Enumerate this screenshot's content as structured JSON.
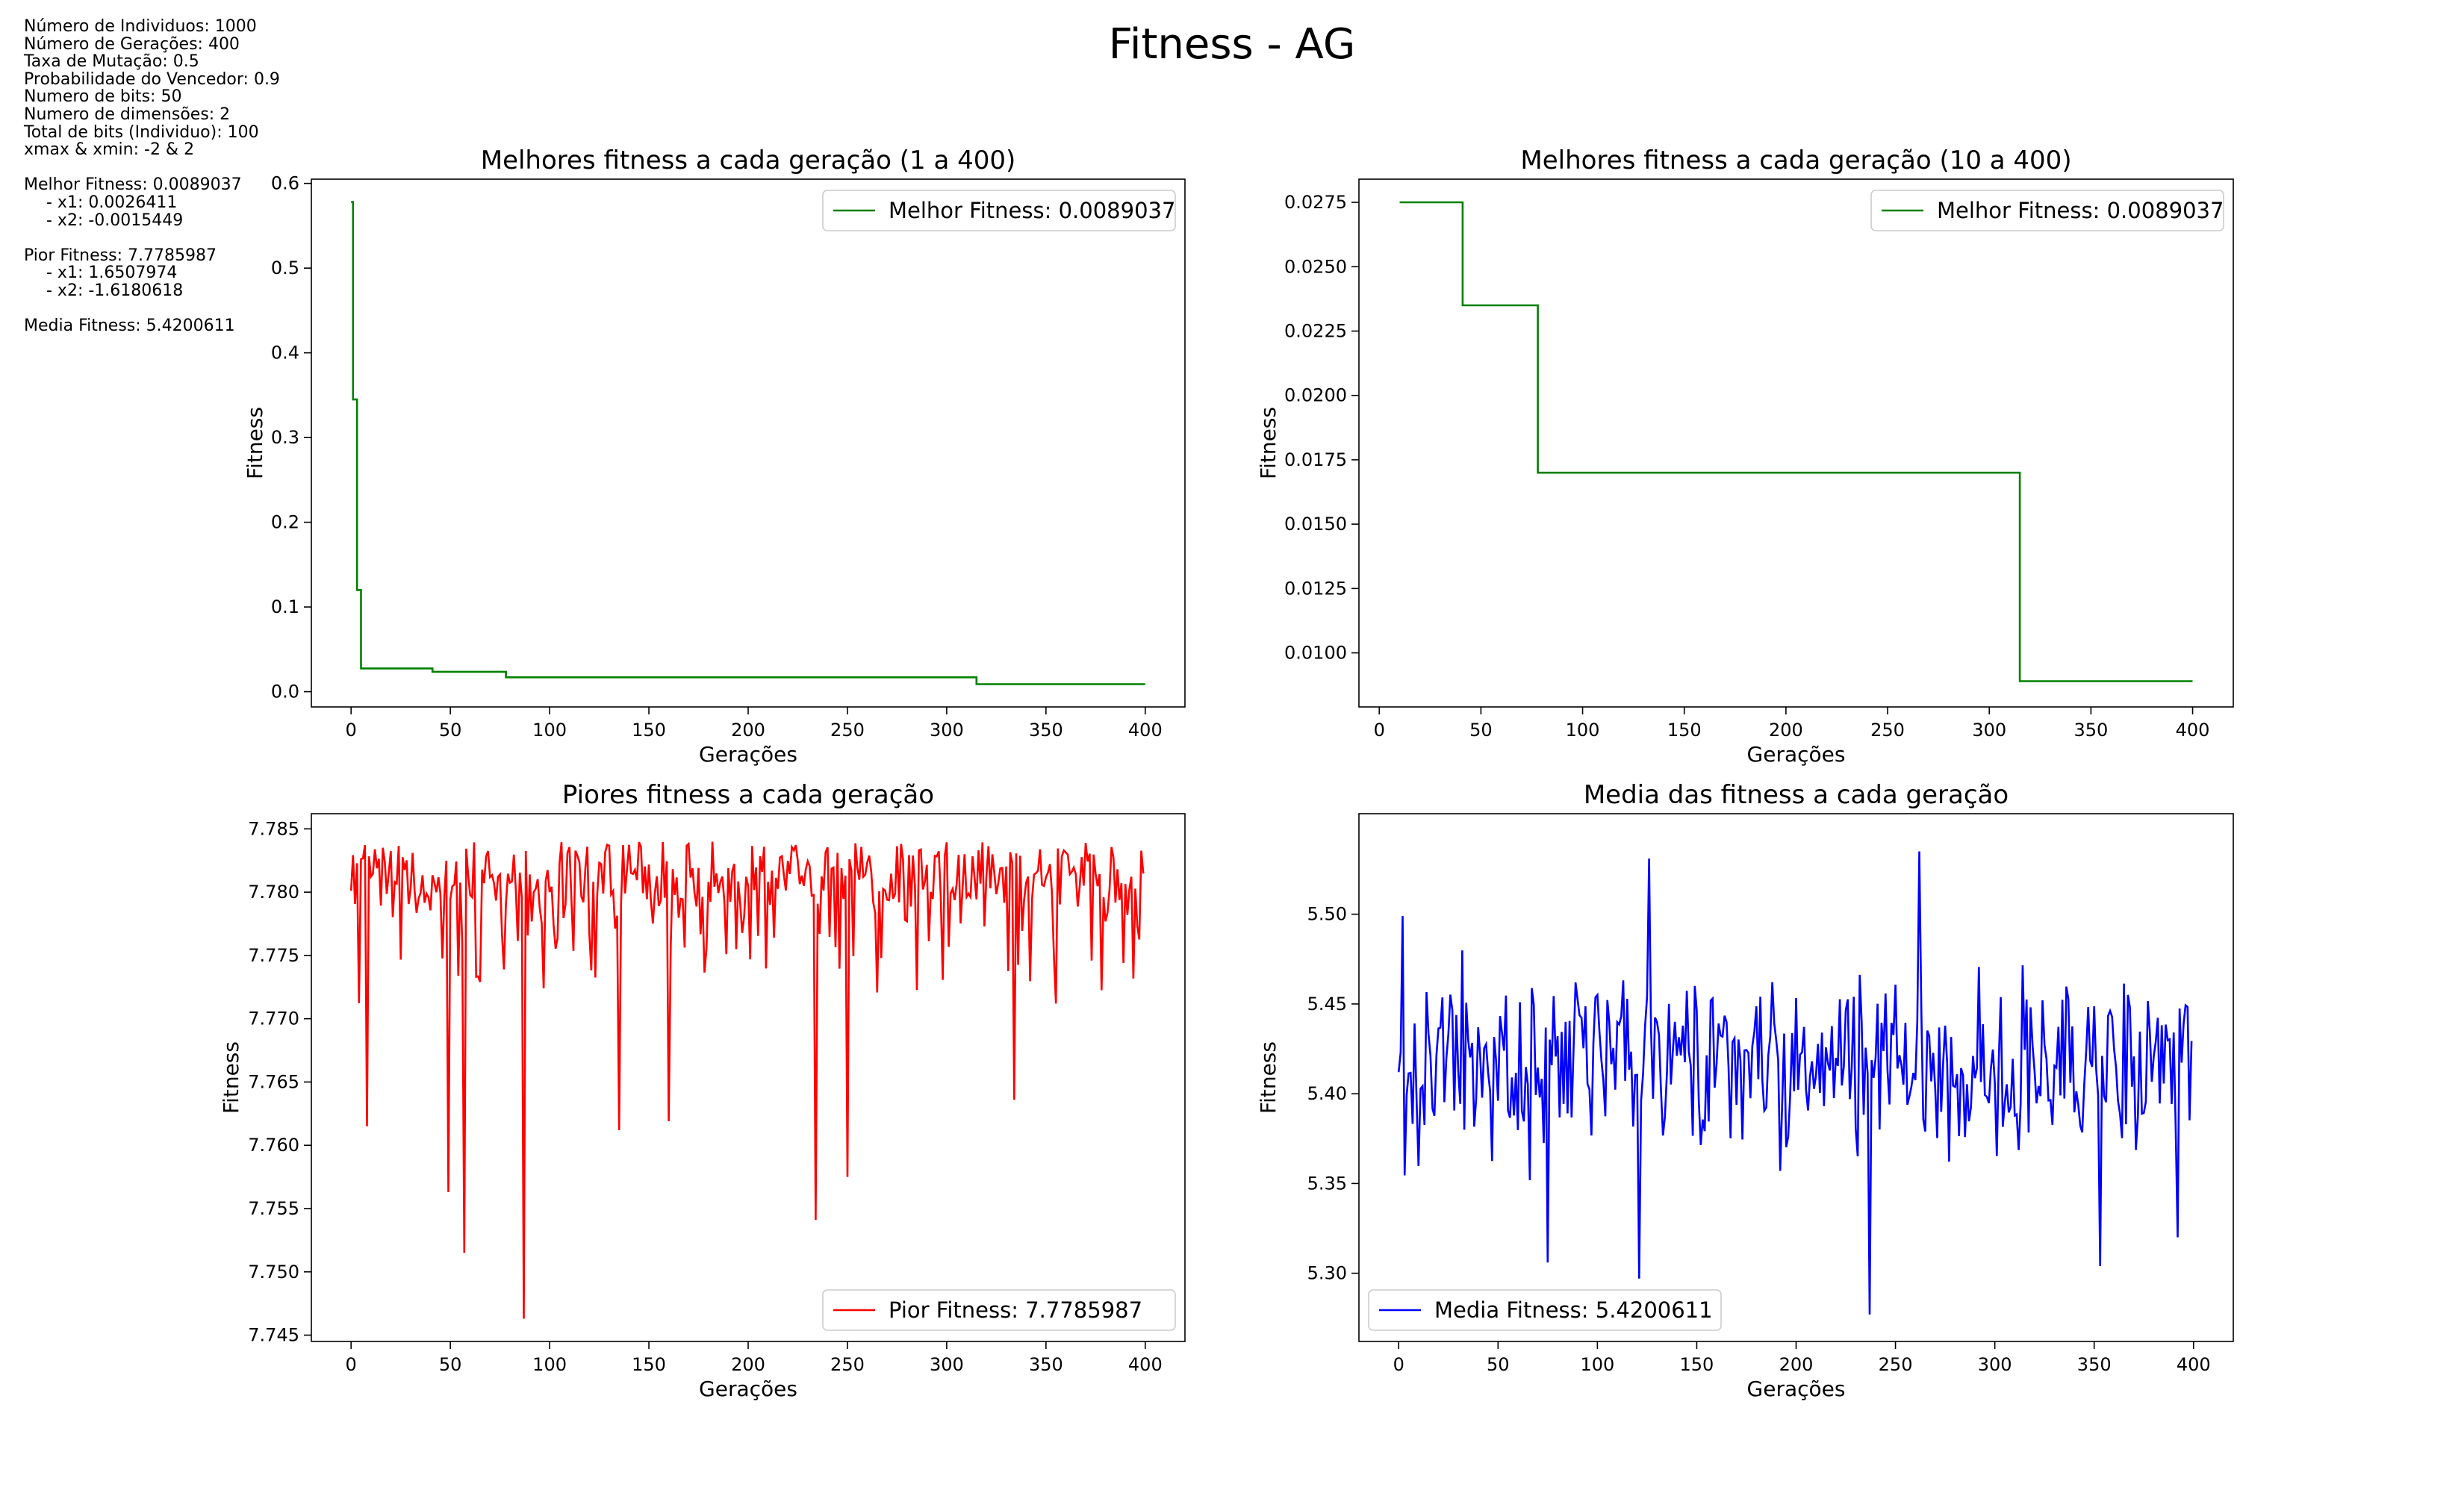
{
  "figure": {
    "title": "Fitness - AG",
    "info": [
      "Número de Individuos: 1000",
      "Número de Gerações: 400",
      "Taxa de Mutação: 0.5",
      "Probabilidade do Vencedor: 0.9",
      "Numero de bits: 50",
      "Numero de dimensões: 2",
      "Total de bits (Individuo): 100",
      "xmax & xmin: -2 & 2",
      "",
      "Melhor Fitness: 0.0089037",
      "  - x1: 0.0026411",
      "  - x2: -0.0015449",
      "",
      "Pior Fitness: 7.7785987",
      "  - x1: 1.6507974",
      "  - x2: -1.6180618",
      "",
      "Media Fitness: 5.4200611"
    ]
  },
  "chart_data": [
    {
      "type": "line",
      "title": "Melhores fitness a cada geração (1 a 400)",
      "xlabel": "Gerações",
      "ylabel": "Fitness",
      "xlim": [
        -20,
        420
      ],
      "ylim": [
        -0.018,
        0.605
      ],
      "xticks": [
        0,
        50,
        100,
        150,
        200,
        250,
        300,
        350,
        400
      ],
      "yticks": [
        0.0,
        0.1,
        0.2,
        0.3,
        0.4,
        0.5,
        0.6
      ],
      "ytick_labels": [
        "0.0",
        "0.1",
        "0.2",
        "0.3",
        "0.4",
        "0.5",
        "0.6"
      ],
      "grid": false,
      "legend": "upper right",
      "step": true,
      "series": [
        {
          "name": "Melhor Fitness: 0.0089037",
          "color": "#008000",
          "points": [
            [
              0,
              0.578
            ],
            [
              1,
              0.345
            ],
            [
              2,
              0.345
            ],
            [
              3,
              0.12
            ],
            [
              4,
              0.12
            ],
            [
              5,
              0.0275
            ],
            [
              41,
              0.0235
            ],
            [
              78,
              0.017
            ],
            [
              315,
              0.0089
            ],
            [
              400,
              0.0089
            ]
          ]
        }
      ]
    },
    {
      "type": "line",
      "title": "Melhores fitness a cada geração (10 a 400)",
      "xlabel": "Gerações",
      "ylabel": "Fitness",
      "xlim": [
        -10,
        420
      ],
      "ylim": [
        0.0079,
        0.0284
      ],
      "xticks": [
        0,
        50,
        100,
        150,
        200,
        250,
        300,
        350,
        400
      ],
      "yticks": [
        0.01,
        0.0125,
        0.015,
        0.0175,
        0.02,
        0.0225,
        0.025,
        0.0275
      ],
      "ytick_labels": [
        "0.0100",
        "0.0125",
        "0.0150",
        "0.0175",
        "0.0200",
        "0.0225",
        "0.0250",
        "0.0275"
      ],
      "grid": false,
      "legend": "upper right",
      "step": true,
      "series": [
        {
          "name": "Melhor Fitness: 0.0089037",
          "color": "#008000",
          "points": [
            [
              10,
              0.0275
            ],
            [
              41,
              0.0235
            ],
            [
              78,
              0.017
            ],
            [
              315,
              0.0089
            ],
            [
              400,
              0.0089
            ]
          ]
        }
      ]
    },
    {
      "type": "line",
      "title": "Piores fitness a cada geração",
      "xlabel": "Gerações",
      "ylabel": "Fitness",
      "xlim": [
        -20,
        420
      ],
      "ylim": [
        7.7445,
        7.7862
      ],
      "xticks": [
        0,
        50,
        100,
        150,
        200,
        250,
        300,
        350,
        400
      ],
      "yticks": [
        7.745,
        7.75,
        7.755,
        7.76,
        7.765,
        7.77,
        7.775,
        7.78,
        7.785
      ],
      "ytick_labels": [
        "7.745",
        "7.750",
        "7.755",
        "7.760",
        "7.765",
        "7.770",
        "7.775",
        "7.780",
        "7.785"
      ],
      "grid": false,
      "legend": "lower right",
      "step": false,
      "series": [
        {
          "name": "Pior Fitness: 7.7785987",
          "color": "#ff0000",
          "generated": {
            "n": 400,
            "base": 7.7815,
            "jitter": 0.0025,
            "dipProb": 0.33,
            "dipMax": 0.008
          },
          "spikes": [
            [
              8,
              7.7615
            ],
            [
              49,
              7.7563
            ],
            [
              57,
              7.7515
            ],
            [
              87,
              7.7463
            ],
            [
              135,
              7.7612
            ],
            [
              160,
              7.7619
            ],
            [
              234,
              7.7541
            ],
            [
              250,
              7.7575
            ],
            [
              334,
              7.7636
            ],
            [
              355,
              7.7712
            ]
          ]
        }
      ]
    },
    {
      "type": "line",
      "title": "Media das fitness a cada geração",
      "xlabel": "Gerações",
      "ylabel": "Fitness",
      "xlim": [
        -20,
        420
      ],
      "ylim": [
        5.262,
        5.556
      ],
      "xticks": [
        0,
        50,
        100,
        150,
        200,
        250,
        300,
        350,
        400
      ],
      "yticks": [
        5.3,
        5.35,
        5.4,
        5.45,
        5.5
      ],
      "ytick_labels": [
        "5.30",
        "5.35",
        "5.40",
        "5.45",
        "5.50"
      ],
      "grid": false,
      "legend": "lower left",
      "step": false,
      "series": [
        {
          "name": "Media Fitness: 5.4200611",
          "color": "#0000ff",
          "generated": {
            "n": 400,
            "center": 5.415,
            "spread": 0.055
          },
          "spikes": [
            [
              2,
              5.499
            ],
            [
              75,
              5.306
            ],
            [
              121,
              5.297
            ],
            [
              126,
              5.531
            ],
            [
              237,
              5.277
            ],
            [
              262,
              5.535
            ],
            [
              353,
              5.304
            ],
            [
              392,
              5.32
            ]
          ]
        }
      ]
    }
  ]
}
